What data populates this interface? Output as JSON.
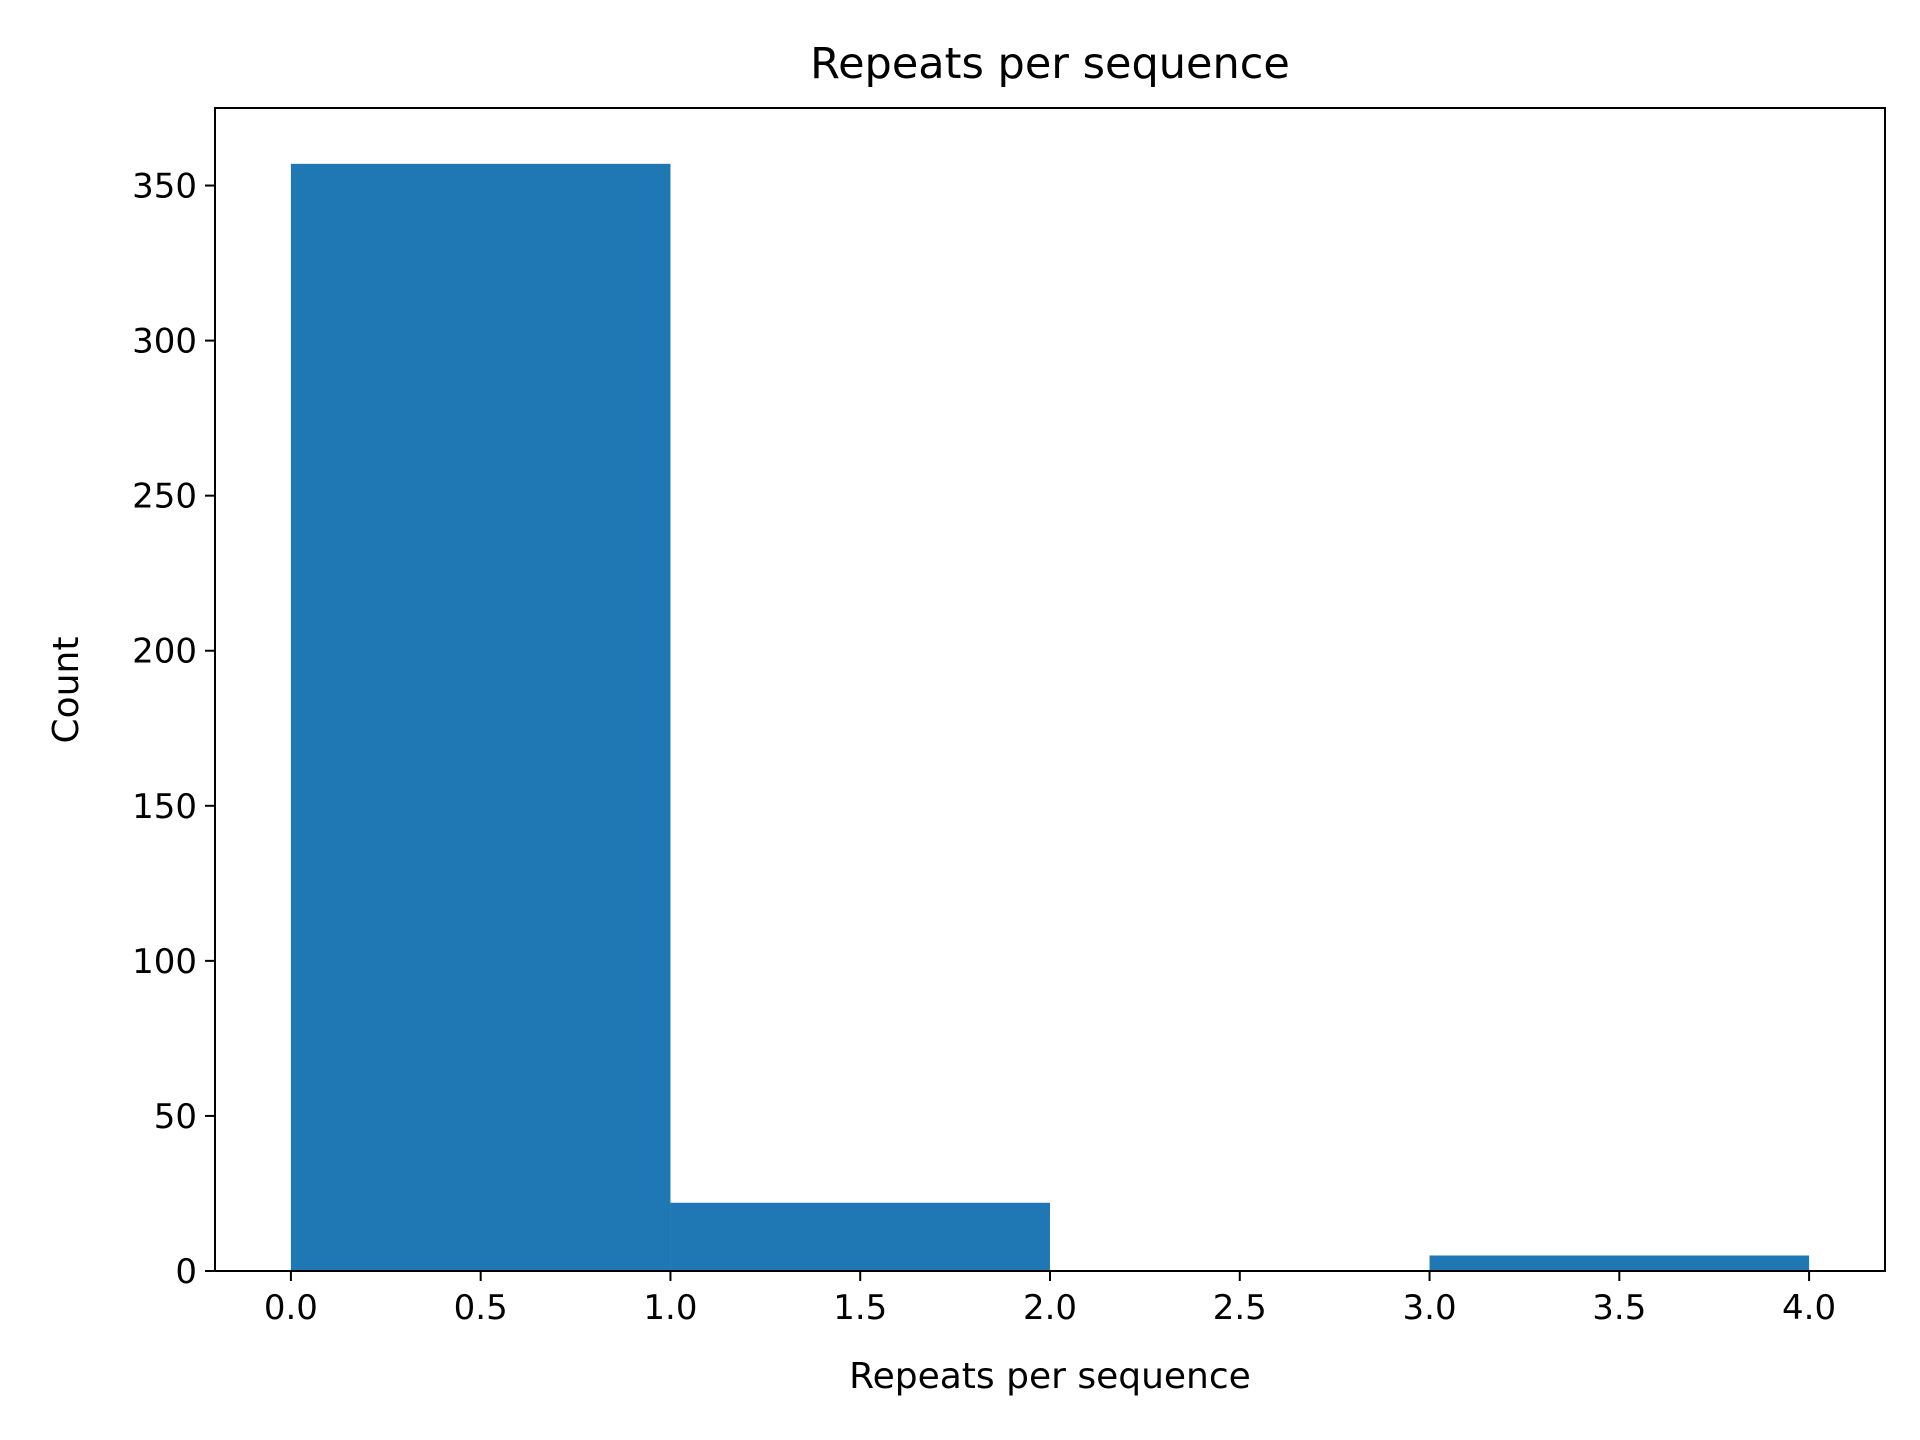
{
  "chart_data": {
    "type": "bar",
    "subtype": "histogram",
    "title": "Repeats per sequence",
    "xlabel": "Repeats per sequence",
    "ylabel": "Count",
    "bins": [
      {
        "x0": 0.0,
        "x1": 1.0,
        "count": 357
      },
      {
        "x0": 1.0,
        "x1": 2.0,
        "count": 22
      },
      {
        "x0": 2.0,
        "x1": 3.0,
        "count": 0
      },
      {
        "x0": 3.0,
        "x1": 4.0,
        "count": 5
      }
    ],
    "xlim": [
      -0.2,
      4.2
    ],
    "ylim": [
      0,
      375
    ],
    "xticks": [
      0.0,
      0.5,
      1.0,
      1.5,
      2.0,
      2.5,
      3.0,
      3.5,
      4.0
    ],
    "xtick_labels": [
      "0.0",
      "0.5",
      "1.0",
      "1.5",
      "2.0",
      "2.5",
      "3.0",
      "3.5",
      "4.0"
    ],
    "yticks": [
      0,
      50,
      100,
      150,
      200,
      250,
      300,
      350
    ],
    "ytick_labels": [
      "0",
      "50",
      "100",
      "150",
      "200",
      "250",
      "300",
      "350"
    ],
    "grid": false,
    "bar_color": "#1f77b4"
  }
}
